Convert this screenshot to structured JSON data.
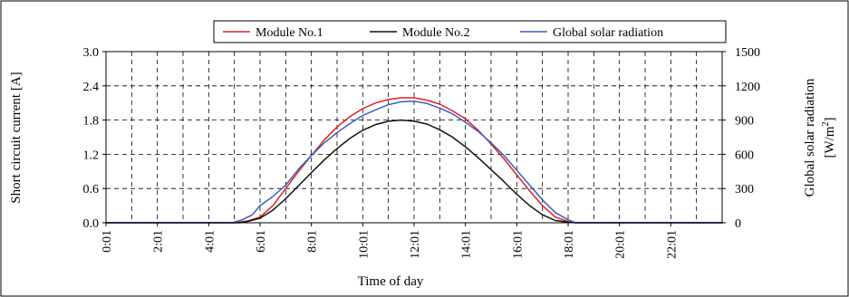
{
  "chart_data": {
    "type": "line",
    "xlabel": "Time of day",
    "ylabel_left": "Short circuit current [A]",
    "ylabel_right_line1": "Global solar radiation",
    "ylabel_right_unit_prefix": "[W/m",
    "ylabel_right_unit_sup": "2",
    "ylabel_right_unit_suffix": "]",
    "x_ticks": [
      "0:01",
      "2:01",
      "4:01",
      "6:01",
      "8:01",
      "10:01",
      "12:01",
      "14:01",
      "16:01",
      "18:01",
      "20:01",
      "22:01"
    ],
    "x_tick_hours": [
      0,
      2,
      4,
      6,
      8,
      10,
      12,
      14,
      16,
      18,
      20,
      22
    ],
    "x_range_hours": [
      0,
      24
    ],
    "y_left_ticks": [
      "0.0",
      "0.6",
      "1.2",
      "1.8",
      "2.4",
      "3.0"
    ],
    "y_left_range": [
      0,
      3.0
    ],
    "y_right_ticks": [
      "0",
      "300",
      "600",
      "900",
      "1200",
      "1500"
    ],
    "y_right_range": [
      0,
      1500
    ],
    "grid": true,
    "legend_position": "top-center",
    "series": [
      {
        "name": "Module No.1",
        "color": "#e02020",
        "axis": "left",
        "x": [
          0,
          5.0,
          5.5,
          6.0,
          6.5,
          7.0,
          7.5,
          8.0,
          8.5,
          9.0,
          9.5,
          10.0,
          10.5,
          11.0,
          11.5,
          12.0,
          12.5,
          13.0,
          13.5,
          14.0,
          14.5,
          15.0,
          15.5,
          16.0,
          16.5,
          17.0,
          17.5,
          18.0,
          18.3,
          24
        ],
        "y": [
          0,
          0,
          0.03,
          0.1,
          0.3,
          0.6,
          0.9,
          1.18,
          1.45,
          1.68,
          1.86,
          2.0,
          2.1,
          2.16,
          2.19,
          2.19,
          2.15,
          2.08,
          1.96,
          1.82,
          1.62,
          1.38,
          1.12,
          0.84,
          0.56,
          0.3,
          0.1,
          0.02,
          0,
          0
        ]
      },
      {
        "name": "Module No.2",
        "color": "#111111",
        "axis": "left",
        "x": [
          0,
          5.2,
          5.5,
          6.0,
          6.5,
          7.0,
          7.5,
          8.0,
          8.5,
          9.0,
          9.5,
          10.0,
          10.5,
          11.0,
          11.5,
          12.0,
          12.5,
          13.0,
          13.5,
          14.0,
          14.5,
          15.0,
          15.5,
          16.0,
          16.5,
          17.0,
          17.5,
          18.0,
          18.3,
          24
        ],
        "y": [
          0,
          0,
          0.02,
          0.08,
          0.22,
          0.42,
          0.65,
          0.88,
          1.1,
          1.3,
          1.48,
          1.62,
          1.72,
          1.78,
          1.8,
          1.78,
          1.73,
          1.63,
          1.5,
          1.33,
          1.14,
          0.93,
          0.72,
          0.5,
          0.3,
          0.14,
          0.04,
          0.01,
          0,
          0
        ]
      },
      {
        "name": "Global solar radiation",
        "color": "#3a5fbf",
        "axis": "right",
        "x": [
          0,
          4.9,
          5.3,
          5.7,
          6.0,
          6.5,
          7.0,
          7.5,
          8.0,
          8.5,
          9.0,
          9.5,
          10.0,
          10.5,
          11.0,
          11.5,
          12.0,
          12.5,
          13.0,
          13.5,
          14.0,
          14.5,
          15.0,
          15.5,
          16.0,
          16.5,
          17.0,
          17.5,
          18.0,
          18.3,
          24
        ],
        "y": [
          0,
          0,
          25,
          70,
          150,
          230,
          330,
          470,
          590,
          700,
          790,
          870,
          940,
          990,
          1035,
          1060,
          1065,
          1045,
          1005,
          955,
          880,
          800,
          700,
          590,
          460,
          330,
          200,
          90,
          25,
          0,
          0
        ]
      }
    ]
  }
}
